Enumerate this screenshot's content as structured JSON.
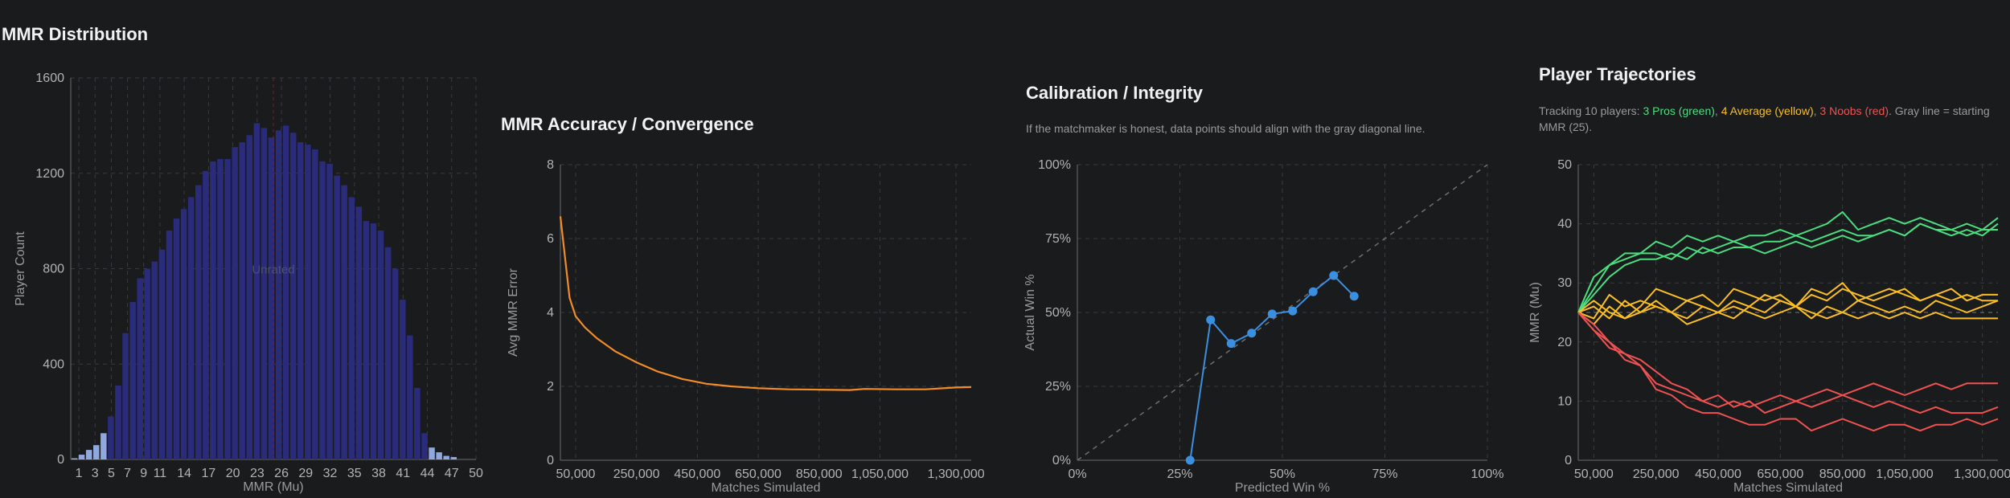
{
  "colors": {
    "hist_bar": "#2b2b7c",
    "hist_tail": "#8fa8e0",
    "accuracy_line": "#f28c28",
    "calibration": "#3b8fe0",
    "pro": "#4ade80",
    "average": "#fbbf24",
    "noob": "#f05252"
  },
  "hist": {
    "title": "MMR Distribution",
    "chart_data": {
      "type": "bar",
      "xlabel": "MMR (Mu)",
      "ylabel": "Player Count",
      "ylim": [
        0,
        1600
      ],
      "yticks": [
        0,
        400,
        800,
        1200,
        1600
      ],
      "xticks": [
        "1",
        "3",
        "5",
        "7",
        "9",
        "11",
        "14",
        "17",
        "20",
        "23",
        "26",
        "29",
        "32",
        "35",
        "38",
        "41",
        "44",
        "47",
        "50"
      ],
      "xrange": [
        0,
        50
      ],
      "bin_width": 0.9,
      "mean_marker_x": 25,
      "overlay_text": "Unrated",
      "grid": true,
      "bins": [
        {
          "x": 0,
          "v": 5
        },
        {
          "x": 0.9,
          "v": 20
        },
        {
          "x": 1.8,
          "v": 40
        },
        {
          "x": 2.7,
          "v": 60
        },
        {
          "x": 3.6,
          "v": 110
        },
        {
          "x": 4.5,
          "v": 180
        },
        {
          "x": 5.4,
          "v": 310
        },
        {
          "x": 6.3,
          "v": 530
        },
        {
          "x": 7.2,
          "v": 660
        },
        {
          "x": 8.1,
          "v": 760
        },
        {
          "x": 9.0,
          "v": 800
        },
        {
          "x": 9.9,
          "v": 830
        },
        {
          "x": 10.8,
          "v": 880
        },
        {
          "x": 11.7,
          "v": 960
        },
        {
          "x": 12.6,
          "v": 1010
        },
        {
          "x": 13.5,
          "v": 1050
        },
        {
          "x": 14.4,
          "v": 1100
        },
        {
          "x": 15.3,
          "v": 1150
        },
        {
          "x": 16.2,
          "v": 1210
        },
        {
          "x": 17.1,
          "v": 1250
        },
        {
          "x": 18.0,
          "v": 1260
        },
        {
          "x": 18.9,
          "v": 1260
        },
        {
          "x": 19.8,
          "v": 1310
        },
        {
          "x": 20.7,
          "v": 1330
        },
        {
          "x": 21.6,
          "v": 1360
        },
        {
          "x": 22.5,
          "v": 1410
        },
        {
          "x": 23.4,
          "v": 1390
        },
        {
          "x": 24.3,
          "v": 1350
        },
        {
          "x": 25.2,
          "v": 1380
        },
        {
          "x": 26.1,
          "v": 1400
        },
        {
          "x": 27.0,
          "v": 1370
        },
        {
          "x": 27.9,
          "v": 1330
        },
        {
          "x": 28.8,
          "v": 1320
        },
        {
          "x": 29.7,
          "v": 1300
        },
        {
          "x": 30.6,
          "v": 1250
        },
        {
          "x": 31.5,
          "v": 1240
        },
        {
          "x": 32.4,
          "v": 1190
        },
        {
          "x": 33.3,
          "v": 1150
        },
        {
          "x": 34.2,
          "v": 1100
        },
        {
          "x": 35.1,
          "v": 1060
        },
        {
          "x": 36.0,
          "v": 1000
        },
        {
          "x": 36.9,
          "v": 990
        },
        {
          "x": 37.8,
          "v": 960
        },
        {
          "x": 38.7,
          "v": 890
        },
        {
          "x": 39.6,
          "v": 800
        },
        {
          "x": 40.5,
          "v": 670
        },
        {
          "x": 41.4,
          "v": 520
        },
        {
          "x": 42.3,
          "v": 300
        },
        {
          "x": 43.2,
          "v": 110
        },
        {
          "x": 44.1,
          "v": 50
        },
        {
          "x": 45.0,
          "v": 30
        },
        {
          "x": 45.9,
          "v": 15
        },
        {
          "x": 46.8,
          "v": 10
        }
      ]
    }
  },
  "accuracy": {
    "title": "MMR Accuracy / Convergence",
    "chart_data": {
      "type": "line",
      "xlabel": "Matches Simulated",
      "ylabel": "Avg MMR Error",
      "xlim": [
        0,
        1350000
      ],
      "ylim": [
        0,
        8
      ],
      "yticks": [
        0,
        2,
        4,
        6,
        8
      ],
      "xticks": [
        50000,
        250000,
        450000,
        650000,
        850000,
        1050000,
        1300000
      ],
      "xtick_labels": [
        "50,000",
        "250,000",
        "450,000",
        "650,000",
        "850,000",
        "1,050,000",
        "1,300,000"
      ],
      "grid": true,
      "series": [
        {
          "x": [
            0,
            15000,
            30000,
            50000,
            80000,
            120000,
            180000,
            250000,
            320000,
            400000,
            480000,
            560000,
            650000,
            750000,
            850000,
            950000,
            1000000,
            1100000,
            1200000,
            1300000,
            1350000
          ],
          "y": [
            6.6,
            5.5,
            4.4,
            3.9,
            3.6,
            3.3,
            2.95,
            2.65,
            2.4,
            2.2,
            2.07,
            2.0,
            1.95,
            1.92,
            1.91,
            1.9,
            1.93,
            1.92,
            1.92,
            1.97,
            1.98
          ]
        }
      ]
    }
  },
  "calibration": {
    "title": "Calibration / Integrity",
    "subtitle": "If the matchmaker is honest, data points should align with the gray diagonal line.",
    "chart_data": {
      "type": "line",
      "xlabel": "Predicted Win %",
      "ylabel": "Actual Win %",
      "xlim": [
        0,
        100
      ],
      "ylim": [
        0,
        100
      ],
      "xticks": [
        0,
        25,
        50,
        75,
        100
      ],
      "xtick_labels": [
        "0%",
        "25%",
        "50%",
        "75%",
        "100%"
      ],
      "yticks": [
        0,
        25,
        50,
        75,
        100
      ],
      "ytick_labels": [
        "0%",
        "25%",
        "50%",
        "75%",
        "100%"
      ],
      "grid": true,
      "reference": "diagonal",
      "series": [
        {
          "x": [
            27.5,
            32.5,
            37.5,
            42.5,
            47.5,
            52.5,
            57.5,
            62.5,
            67.5
          ],
          "y": [
            0,
            47.5,
            39.5,
            43,
            49.5,
            50.5,
            57,
            62.5,
            55.5
          ]
        }
      ]
    }
  },
  "trajectories": {
    "title": "Player Trajectories",
    "subtitle": {
      "lead": "Tracking 10 players: ",
      "pros": "3 Pros (green)",
      "sep1": ", ",
      "avg": "4 Average (yellow)",
      "sep2": ", ",
      "noobs": "3 Noobs (red)",
      "tail": ". Gray line = starting MMR (25)."
    },
    "chart_data": {
      "type": "line",
      "xlabel": "Matches Simulated",
      "ylabel": "MMR (Mu)",
      "xlim": [
        0,
        1350000
      ],
      "ylim": [
        0,
        50
      ],
      "yticks": [
        0,
        10,
        20,
        30,
        40,
        50
      ],
      "xticks": [
        50000,
        250000,
        450000,
        650000,
        850000,
        1050000,
        1300000
      ],
      "xtick_labels": [
        "50,000",
        "250,000",
        "450,000",
        "650,000",
        "850,000",
        "1,050,000",
        "1,300,000"
      ],
      "reference_y": 25,
      "grid": true,
      "x": [
        0,
        50000,
        100000,
        150000,
        200000,
        250000,
        300000,
        350000,
        400000,
        450000,
        500000,
        550000,
        600000,
        650000,
        700000,
        750000,
        800000,
        850000,
        900000,
        950000,
        1000000,
        1050000,
        1100000,
        1150000,
        1200000,
        1250000,
        1300000,
        1350000
      ],
      "series": [
        {
          "group": "pro",
          "y": [
            25,
            31,
            33,
            34,
            35,
            35,
            34,
            36,
            35,
            36,
            37,
            36,
            37,
            37,
            38,
            37,
            38,
            39,
            38,
            38,
            39,
            38,
            40,
            39,
            39,
            38,
            39,
            41
          ]
        },
        {
          "group": "pro",
          "y": [
            25,
            29,
            33,
            35,
            35,
            37,
            36,
            38,
            37,
            38,
            37,
            38,
            38,
            39,
            38,
            39,
            40,
            42,
            39,
            40,
            41,
            40,
            41,
            40,
            39,
            40,
            39,
            39
          ]
        },
        {
          "group": "pro",
          "y": [
            25,
            28,
            31,
            33,
            34,
            34,
            35,
            34,
            36,
            35,
            36,
            36,
            35,
            36,
            37,
            36,
            37,
            38,
            37,
            38,
            39,
            38,
            40,
            39,
            38,
            39,
            38,
            40
          ]
        },
        {
          "group": "avg",
          "y": [
            25,
            27,
            25,
            24,
            26,
            29,
            28,
            27,
            28,
            26,
            29,
            28,
            27,
            28,
            26,
            29,
            28,
            30,
            27,
            28,
            29,
            28,
            27,
            28,
            29,
            27,
            28,
            28
          ]
        },
        {
          "group": "avg",
          "y": [
            25,
            23,
            26,
            24,
            25,
            26,
            25,
            27,
            26,
            25,
            27,
            26,
            28,
            27,
            26,
            28,
            27,
            29,
            28,
            27,
            28,
            29,
            27,
            28,
            27,
            28,
            27,
            27
          ]
        },
        {
          "group": "avg",
          "y": [
            25,
            24,
            28,
            26,
            27,
            26,
            25,
            24,
            26,
            25,
            24,
            26,
            25,
            27,
            26,
            24,
            26,
            25,
            27,
            26,
            25,
            26,
            25,
            27,
            26,
            25,
            26,
            27
          ]
        },
        {
          "group": "avg",
          "y": [
            25,
            26,
            24,
            27,
            25,
            27,
            25,
            23,
            24,
            25,
            26,
            25,
            24,
            25,
            26,
            25,
            24,
            25,
            24,
            25,
            24,
            25,
            24,
            25,
            24,
            24,
            24,
            24
          ]
        },
        {
          "group": "noob",
          "y": [
            25,
            22,
            19,
            18,
            16,
            12,
            11,
            9,
            8,
            8,
            7,
            6,
            6,
            7,
            7,
            5,
            6,
            7,
            6,
            5,
            6,
            6,
            5,
            6,
            6,
            7,
            6,
            7
          ]
        },
        {
          "group": "noob",
          "y": [
            25,
            22,
            20,
            17,
            16,
            13,
            12,
            11,
            10,
            9,
            10,
            9,
            10,
            11,
            10,
            11,
            12,
            11,
            12,
            13,
            12,
            11,
            12,
            13,
            12,
            13,
            13,
            13
          ]
        },
        {
          "group": "noob",
          "y": [
            25,
            23,
            20,
            18,
            17,
            15,
            13,
            12,
            10,
            11,
            9,
            10,
            8,
            9,
            10,
            9,
            10,
            11,
            10,
            9,
            10,
            9,
            8,
            9,
            8,
            8,
            8,
            9
          ]
        }
      ]
    }
  }
}
